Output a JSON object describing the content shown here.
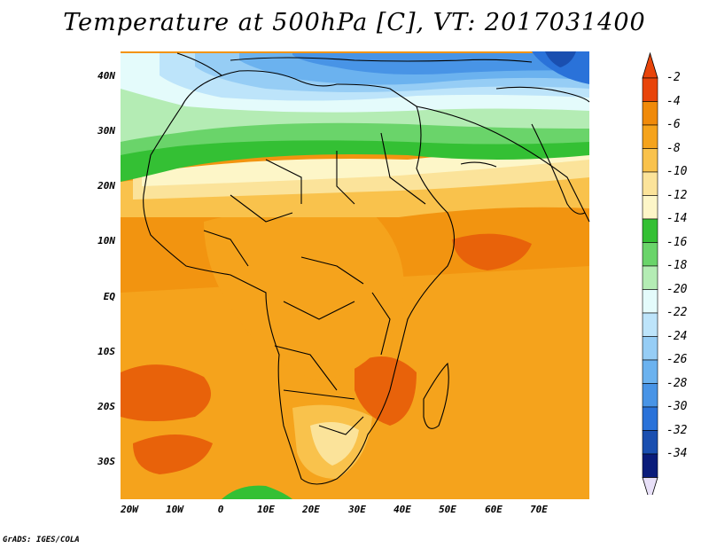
{
  "title": "Temperature at 500hPa [C], VT: 2017031400",
  "credit": "GrADS: IGES/COLA",
  "lat_ticks": [
    "40N",
    "30N",
    "20N",
    "10N",
    "EQ",
    "10S",
    "20S",
    "30S"
  ],
  "lon_ticks": [
    "20W",
    "10W",
    "0",
    "10E",
    "20E",
    "30E",
    "40E",
    "50E",
    "60E",
    "70E"
  ],
  "colorbar": {
    "labels": [
      "-2",
      "-4",
      "-6",
      "-8",
      "-10",
      "-12",
      "-14",
      "-16",
      "-18",
      "-20",
      "-22",
      "-24",
      "-26",
      "-28",
      "-30",
      "-32",
      "-34"
    ],
    "colors": [
      "#e8440a",
      "#f08a0a",
      "#f5a31c",
      "#f9c24c",
      "#fbe39a",
      "#fdf6c8",
      "#34c034",
      "#6ad46a",
      "#b4ecb4",
      "#e4fbfb",
      "#bde4fa",
      "#96cdf5",
      "#6bb2ef",
      "#4894e6",
      "#2a72d9",
      "#1a4fb0",
      "#0a1c7a"
    ],
    "top_arrow_color": "#e8440a",
    "bottom_arrow_color": "#e8e0f8"
  },
  "field_colors": {
    "ocean_west": "#f08a0a",
    "ocean_east": "#f5a31c",
    "warm_patch": "#e8620a",
    "mid_orange": "#f5a31c",
    "sahara": "#fdf6c8",
    "med_band": "#34c034",
    "light_green": "#b4ecb4",
    "cyan": "#e4fbfb",
    "blue_light": "#96cdf5",
    "blue_mid": "#4894e6",
    "blue_deep": "#1a4fb0"
  }
}
